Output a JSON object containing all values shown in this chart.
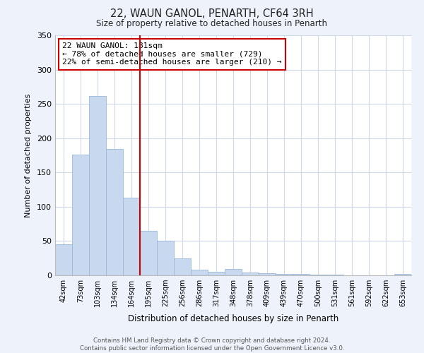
{
  "title": "22, WAUN GANOL, PENARTH, CF64 3RH",
  "subtitle": "Size of property relative to detached houses in Penarth",
  "xlabel": "Distribution of detached houses by size in Penarth",
  "ylabel": "Number of detached properties",
  "bar_labels": [
    "42sqm",
    "73sqm",
    "103sqm",
    "134sqm",
    "164sqm",
    "195sqm",
    "225sqm",
    "256sqm",
    "286sqm",
    "317sqm",
    "348sqm",
    "378sqm",
    "409sqm",
    "439sqm",
    "470sqm",
    "500sqm",
    "531sqm",
    "561sqm",
    "592sqm",
    "622sqm",
    "653sqm"
  ],
  "bar_values": [
    45,
    176,
    261,
    184,
    113,
    65,
    50,
    25,
    8,
    5,
    9,
    4,
    3,
    2,
    2,
    1,
    1,
    0,
    0,
    0,
    2
  ],
  "bar_color": "#c8d8ee",
  "bar_edge_color": "#9ab8d8",
  "vline_x_index": 4.5,
  "vline_color": "#cc0000",
  "annotation_title": "22 WAUN GANOL: 181sqm",
  "annotation_line1": "← 78% of detached houses are smaller (729)",
  "annotation_line2": "22% of semi-detached houses are larger (210) →",
  "annotation_box_color": "#ffffff",
  "annotation_box_edge": "#cc0000",
  "ylim": [
    0,
    350
  ],
  "yticks": [
    0,
    50,
    100,
    150,
    200,
    250,
    300,
    350
  ],
  "footer_line1": "Contains HM Land Registry data © Crown copyright and database right 2024.",
  "footer_line2": "Contains public sector information licensed under the Open Government Licence v3.0.",
  "bg_color": "#eef3fb",
  "plot_bg_color": "#ffffff",
  "grid_color": "#d0d8ec"
}
